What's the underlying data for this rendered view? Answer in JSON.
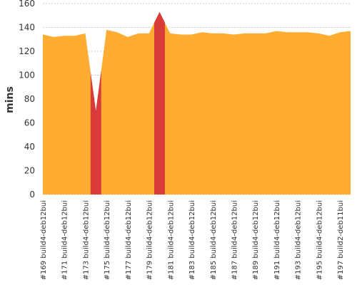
{
  "chart_data": {
    "type": "area",
    "ylabel": "mins",
    "ylim": [
      0,
      160
    ],
    "yticks": [
      0,
      20,
      40,
      60,
      80,
      100,
      120,
      140,
      160
    ],
    "grid": true,
    "colors": {
      "success": "#FFAC33",
      "failure": "#D93A3A",
      "grid": "#9a9a9a",
      "background": "#ffffff"
    },
    "x_tick_labels": [
      "#169 build4-deb12bui",
      "#171 build4-deb12bui",
      "#173 build4-deb12bui",
      "#175 build4-deb12bui",
      "#177 build4-deb12bui",
      "#179 build4-deb12bui",
      "#181 build4-deb12bui",
      "#183 build4-deb12bui",
      "#185 build4-deb12bui",
      "#187 build4-deb12bui",
      "#189 build4-deb12bui",
      "#191 build4-deb12bui",
      "#193 build4-deb12bui",
      "#195 build4-deb12bui",
      "#197 build2-deb11bui"
    ],
    "builds": [
      169,
      170,
      171,
      172,
      173,
      174,
      175,
      176,
      177,
      178,
      179,
      180,
      181,
      182,
      183,
      184,
      185,
      186,
      187,
      188,
      189,
      190,
      191,
      192,
      193,
      194,
      195,
      196,
      197,
      198
    ],
    "values": [
      134,
      132,
      133,
      133,
      135,
      70,
      138,
      136,
      132,
      135,
      135,
      153,
      135,
      134,
      134,
      136,
      135,
      135,
      134,
      135,
      135,
      135,
      137,
      136,
      136,
      136,
      135,
      133,
      136,
      137
    ],
    "status": [
      "success",
      "success",
      "success",
      "success",
      "success",
      "failure",
      "success",
      "success",
      "success",
      "success",
      "success",
      "failure",
      "success",
      "success",
      "success",
      "success",
      "success",
      "success",
      "success",
      "success",
      "success",
      "success",
      "success",
      "success",
      "success",
      "success",
      "success",
      "success",
      "success",
      "success"
    ]
  }
}
